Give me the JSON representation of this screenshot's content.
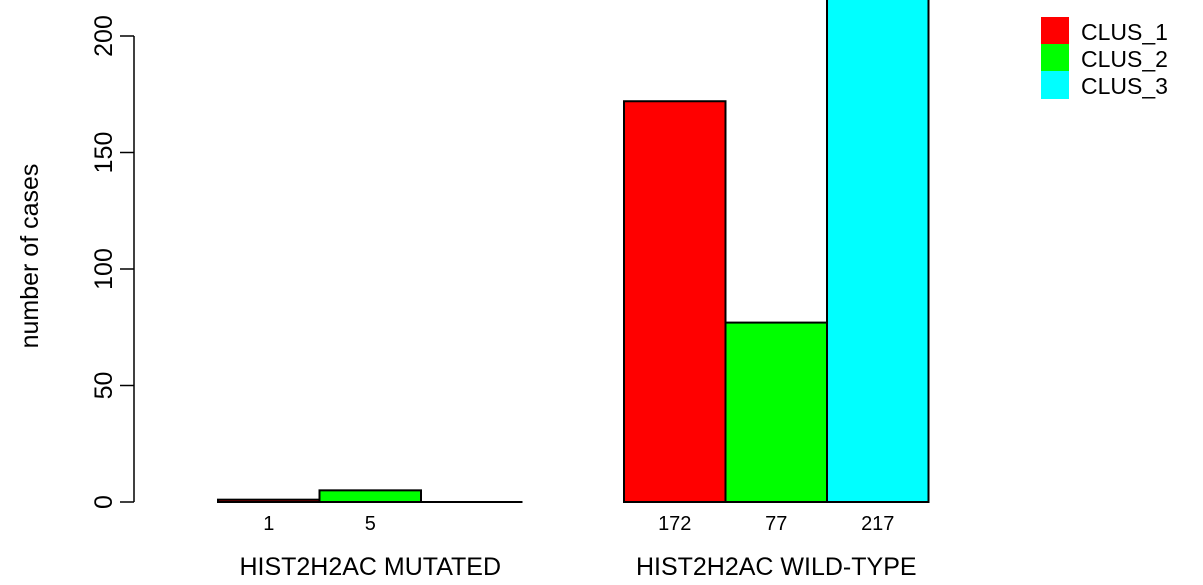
{
  "chart_data": {
    "type": "bar",
    "ylabel": "number of cases",
    "xlabel": "",
    "title": "",
    "ylim": [
      0,
      220
    ],
    "yticks": [
      0,
      50,
      100,
      150,
      200
    ],
    "groups": [
      {
        "label": "HIST2H2AC MUTATED",
        "values": [
          1,
          5,
          0
        ],
        "value_labels": [
          "1",
          "5",
          ""
        ]
      },
      {
        "label": "HIST2H2AC WILD-TYPE",
        "values": [
          172,
          77,
          217
        ],
        "value_labels": [
          "172",
          "77",
          "217"
        ]
      }
    ],
    "series": [
      {
        "name": "CLUS_1",
        "color": "#ff0000"
      },
      {
        "name": "CLUS_2",
        "color": "#00ff00"
      },
      {
        "name": "CLUS_3",
        "color": "#00ffff"
      }
    ],
    "legend": {
      "placement": "top-right"
    }
  }
}
